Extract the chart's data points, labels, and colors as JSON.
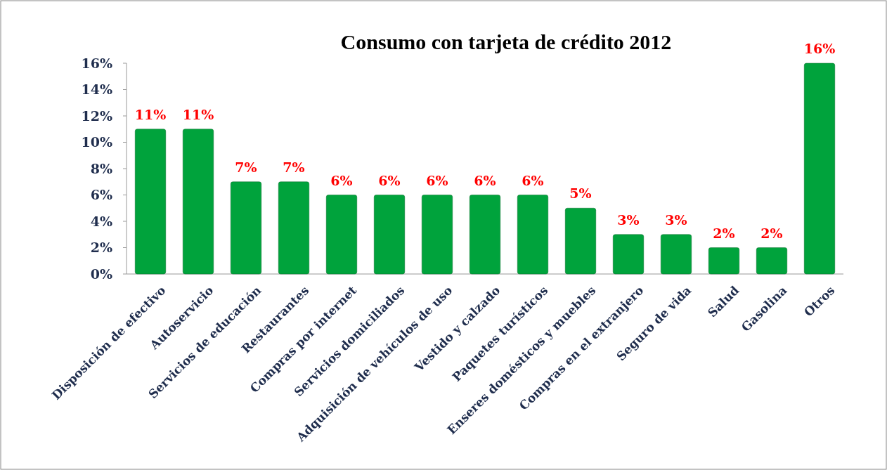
{
  "chart_data": {
    "type": "bar",
    "title": "Consumo con tarjeta de crédito 2012",
    "categories": [
      "Disposición de efectivo",
      "Autoservicio",
      "Servicios de educación",
      "Restaurantes",
      "Compras por internet",
      "Servicios domiciliados",
      "Adquisición de vehículos de uso",
      "Vestido y calzado",
      "Paquetes turísticos",
      "Enseres domésticos y muebles",
      "Compras en el extranjero",
      "Seguro de vida",
      "Salud",
      "Gasolina",
      "Otros"
    ],
    "values": [
      11,
      11,
      7,
      7,
      6,
      6,
      6,
      6,
      6,
      5,
      3,
      3,
      2,
      2,
      16
    ],
    "value_labels": [
      "11%",
      "11%",
      "7%",
      "7%",
      "6%",
      "6%",
      "6%",
      "6%",
      "6%",
      "5%",
      "3%",
      "3%",
      "2%",
      "2%",
      "16%"
    ],
    "color": "#00a33c",
    "ylim": [
      0,
      16
    ],
    "yticks": [
      {
        "value": 0,
        "label": "0%"
      },
      {
        "value": 2,
        "label": "2%"
      },
      {
        "value": 4,
        "label": "4%"
      },
      {
        "value": 6,
        "label": "6%"
      },
      {
        "value": 8,
        "label": "8%"
      },
      {
        "value": 10,
        "label": "10%"
      },
      {
        "value": 12,
        "label": "12%"
      },
      {
        "value": 14,
        "label": "14%"
      },
      {
        "value": 16,
        "label": "16%"
      }
    ],
    "grid": false
  }
}
